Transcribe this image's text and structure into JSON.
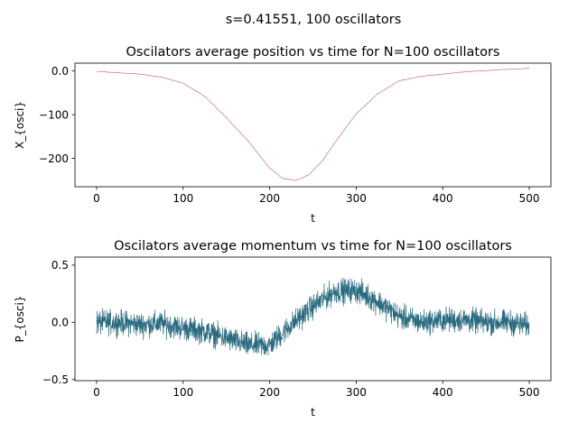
{
  "figure": {
    "suptitle": "s=0.41551, 100 oscillators"
  },
  "chart_data": [
    {
      "type": "line",
      "title": "Oscilators average position vs time for N=100 oscillators",
      "xlabel": "t",
      "ylabel": "X_{osci}",
      "xlim": [
        -25,
        525
      ],
      "ylim": [
        -265,
        18
      ],
      "xticks": [
        0,
        100,
        200,
        300,
        400,
        500
      ],
      "yticks": [
        0,
        -100,
        -200
      ],
      "grid": false,
      "color": "#c45a6a",
      "series": [
        {
          "x": [
            0,
            25,
            50,
            75,
            100,
            125,
            150,
            175,
            200,
            215,
            230,
            245,
            260,
            275,
            300,
            325,
            350,
            375,
            400,
            425,
            450,
            475,
            500
          ],
          "y": [
            -1,
            -4,
            -7,
            -14,
            -28,
            -58,
            -107,
            -160,
            -222,
            -246,
            -251,
            -238,
            -208,
            -165,
            -98,
            -52,
            -22,
            -12,
            -7,
            -2,
            1,
            4,
            6
          ]
        }
      ]
    },
    {
      "type": "line",
      "title": "Oscilators average momentum vs time for N=100 oscillators",
      "xlabel": "t",
      "ylabel": "P_{osci}",
      "xlim": [
        -25,
        525
      ],
      "ylim": [
        -0.51,
        0.57
      ],
      "xticks": [
        0,
        100,
        200,
        300,
        400,
        500
      ],
      "yticks": [
        0.5,
        0.0,
        -0.5
      ],
      "grid": false,
      "color": "#2a6b80",
      "series": [
        {
          "x": [
            0,
            25,
            50,
            75,
            100,
            125,
            150,
            175,
            200,
            225,
            250,
            275,
            300,
            325,
            350,
            375,
            400,
            425,
            450,
            475,
            500
          ],
          "y": [
            0.0,
            0.0,
            -0.02,
            -0.01,
            -0.05,
            -0.08,
            -0.14,
            -0.2,
            -0.2,
            -0.02,
            0.14,
            0.27,
            0.28,
            0.18,
            0.05,
            0.0,
            0.02,
            0.02,
            0.0,
            0.0,
            -0.03
          ],
          "noise_amplitude": 0.08
        }
      ]
    }
  ]
}
